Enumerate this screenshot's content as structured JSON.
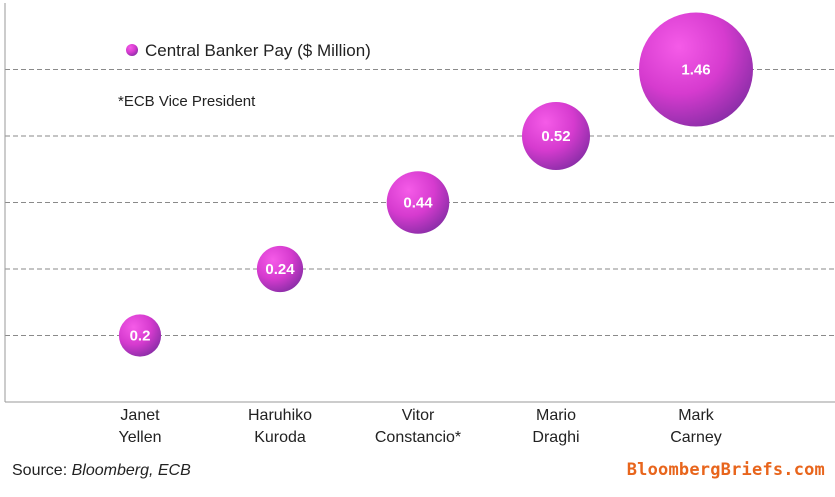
{
  "chart_data": {
    "type": "bubble",
    "legend": {
      "label": "Central Banker Pay ($ Million)",
      "position": "top-left"
    },
    "annotation": "*ECB Vice President",
    "categories": [
      [
        "Janet",
        "Yellen"
      ],
      [
        "Haruhiko",
        "Kuroda"
      ],
      [
        "Vitor",
        "Constancio*"
      ],
      [
        "Mario",
        "Draghi"
      ],
      [
        "Mark",
        "Carney"
      ]
    ],
    "series": [
      {
        "name": "Central Banker Pay ($ Million)",
        "values": [
          0.2,
          0.24,
          0.44,
          0.52,
          1.46
        ],
        "labels": [
          "0.2",
          "0.24",
          "0.44",
          "0.52",
          "1.46"
        ]
      }
    ],
    "y_positions": [
      1,
      2,
      3,
      4,
      5
    ],
    "ylim": [
      0,
      6
    ],
    "grid": "horizontal-dashed",
    "colors": {
      "bubble_light": "#f04fe0",
      "bubble_dark": "#8c2ea8",
      "grid": "#8a8a8a",
      "axis": "#9a9a9a"
    }
  },
  "footer": {
    "source_prefix": "Source: ",
    "source_italic": "Bloomberg, ECB",
    "brand": "BloombergBriefs.com"
  }
}
